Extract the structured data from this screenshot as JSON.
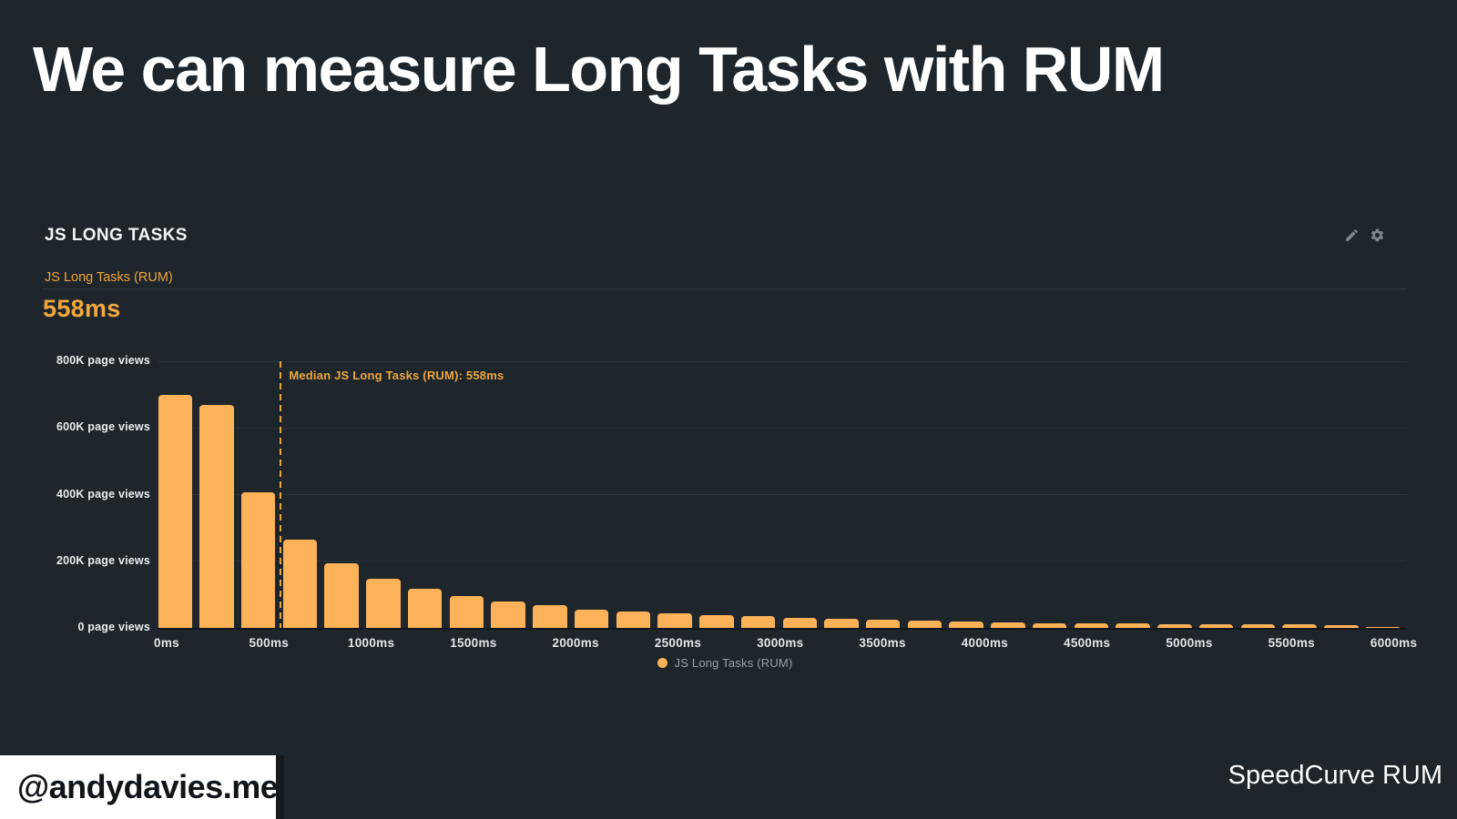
{
  "slide": {
    "title": "We can measure Long Tasks with RUM",
    "badge": "@andydavies.me",
    "attribution": "SpeedCurve RUM"
  },
  "chart_panel": {
    "header": "JS LONG TASKS",
    "icons": [
      "edit-pencil-icon",
      "settings-gear-icon"
    ],
    "metric_label": "JS Long Tasks (RUM)",
    "metric_value": "558ms",
    "legend_label": "JS Long Tasks (RUM)"
  },
  "chart_data": {
    "type": "bar",
    "title": "JS Long Tasks (RUM) histogram",
    "values_unit": "page views",
    "x_unit": "ms",
    "bucket_width_ms": 200,
    "bucket_start_ms": [
      0,
      200,
      400,
      600,
      800,
      1000,
      1200,
      1400,
      1600,
      1800,
      2000,
      2200,
      2400,
      2600,
      2800,
      3000,
      3200,
      3400,
      3600,
      3800,
      4000,
      4200,
      4400,
      4600,
      4800,
      5000,
      5200,
      5400,
      5600,
      5800
    ],
    "values": [
      700000,
      668000,
      408000,
      265000,
      195000,
      148000,
      118000,
      96000,
      80000,
      67000,
      56000,
      49000,
      45000,
      38000,
      35000,
      31000,
      27000,
      25000,
      22000,
      18000,
      16000,
      15000,
      14000,
      13000,
      12000,
      11000,
      10000,
      10000,
      7000,
      2000
    ],
    "ylim": [
      0,
      800000
    ],
    "y_ticks": [
      {
        "value": 0,
        "label": "0 page views"
      },
      {
        "value": 200000,
        "label": "200K page views"
      },
      {
        "value": 400000,
        "label": "400K page views"
      },
      {
        "value": 600000,
        "label": "600K page views"
      },
      {
        "value": 800000,
        "label": "800K page views"
      }
    ],
    "x_ticks": [
      {
        "ms": 0,
        "label": "0ms"
      },
      {
        "ms": 500,
        "label": "500ms"
      },
      {
        "ms": 1000,
        "label": "1000ms"
      },
      {
        "ms": 1500,
        "label": "1500ms"
      },
      {
        "ms": 2000,
        "label": "2000ms"
      },
      {
        "ms": 2500,
        "label": "2500ms"
      },
      {
        "ms": 3000,
        "label": "3000ms"
      },
      {
        "ms": 3500,
        "label": "3500ms"
      },
      {
        "ms": 4000,
        "label": "4000ms"
      },
      {
        "ms": 4500,
        "label": "4500ms"
      },
      {
        "ms": 5000,
        "label": "5000ms"
      },
      {
        "ms": 5500,
        "label": "5500ms"
      },
      {
        "ms": 6000,
        "label": "6000ms"
      }
    ],
    "median_ms": 558,
    "median_label": "Median JS Long Tasks (RUM): 558ms",
    "grid": true,
    "legend_position": "bottom-center",
    "bar_color": "#fbb259",
    "accent_color": "#eda73f",
    "background_color": "#1e262c"
  }
}
